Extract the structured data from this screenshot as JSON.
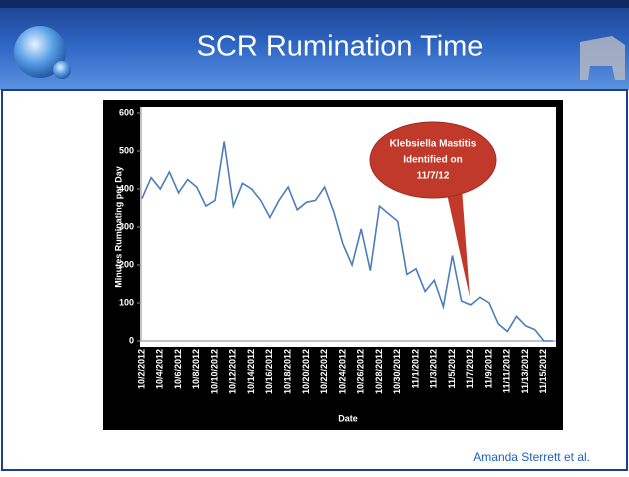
{
  "slide": {
    "title": "SCR Rumination Time",
    "credit": "Amanda Sterrett et al."
  },
  "chart_data": {
    "type": "line",
    "categories": [
      "10/2/2012",
      null,
      "10/4/2012",
      null,
      "10/6/2012",
      null,
      "10/8/2012",
      null,
      "10/10/2012",
      null,
      "10/12/2012",
      null,
      "10/14/2012",
      null,
      "10/16/2012",
      null,
      "10/18/2012",
      null,
      "10/20/2012",
      null,
      "10/22/2012",
      null,
      "10/24/2012",
      null,
      "10/26/2012",
      null,
      "10/28/2012",
      null,
      "10/30/2012",
      null,
      "11/1/2012",
      null,
      "11/3/2012",
      null,
      "11/5/2012",
      null,
      "11/7/2012",
      null,
      "11/9/2012",
      null,
      "11/11/2012",
      null,
      "11/13/2012",
      null,
      "11/15/2012",
      null
    ],
    "values": [
      375,
      430,
      400,
      445,
      390,
      425,
      405,
      355,
      370,
      525,
      355,
      415,
      400,
      370,
      325,
      370,
      405,
      345,
      365,
      370,
      405,
      340,
      255,
      200,
      295,
      185,
      355,
      335,
      315,
      175,
      190,
      130,
      160,
      90,
      225,
      105,
      95,
      115,
      100,
      45,
      25,
      65,
      40,
      30,
      0,
      0
    ],
    "color": "#4a7ebb",
    "ylim": [
      0,
      600
    ],
    "yticks": [
      0,
      100,
      200,
      300,
      400,
      500,
      600
    ],
    "y_label": "Minutes Ruminating per Day",
    "x_label": "Date",
    "annotation": [
      "Klebsiella Mastitis",
      "Identified on",
      "11/7/12"
    ]
  }
}
